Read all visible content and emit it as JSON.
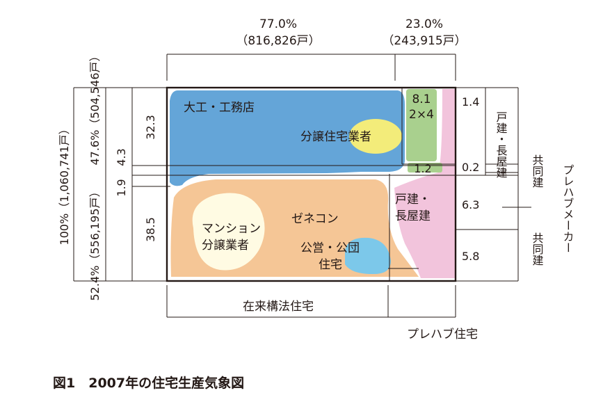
{
  "caption": "図1　2007年の住宅生産気象図",
  "top_labels": {
    "conventional_pct": "77.0%",
    "conventional_count": "（816,826戸）",
    "prefab_pct": "23.0%",
    "prefab_count": "（243,915戸）"
  },
  "left_labels": {
    "total": "100%（1,060,741戸）",
    "detached": "47.6%（504,546戸）",
    "collective": "52.4%（556,195戸）",
    "v_32_3": "32.3",
    "v_4_3": "4.3",
    "v_1_9": "1.9",
    "v_38_5": "38.5"
  },
  "right_labels": {
    "v_1_4": "1.4",
    "v_0_2": "0.2",
    "v_6_3": "6.3",
    "v_5_8": "5.8",
    "detached_row_house": "戸建・長屋建",
    "collective_upper": "共同建",
    "collective_lower": "共同建",
    "prefab_maker": "プレハブメーカー"
  },
  "regions": {
    "carpenter": "大工・工務店",
    "sales_builder": "分譲住宅業者",
    "two_by_four_value": "8.1",
    "two_by_four": "2×4",
    "small_value": "1.2",
    "prefab_detached_line1": "戸建・",
    "prefab_detached_line2": "長屋建",
    "general_contractor": "ゼネコン",
    "mansion_line1": "マンション",
    "mansion_line2": "分譲業者",
    "public_line1": "公営・公団",
    "public_line2": "住宅"
  },
  "bottom_labels": {
    "conventional": "在来構法住宅",
    "prefab": "プレハブ住宅"
  },
  "colors": {
    "carpenter": "#64a5d8",
    "sales_builder": "#f3ec7a",
    "two_by_four": "#a9d08e",
    "prefab": "#f2c4dc",
    "general_contractor": "#f5c696",
    "mansion": "#fffbe3",
    "public": "#7cc8ea",
    "line": "#231815"
  }
}
